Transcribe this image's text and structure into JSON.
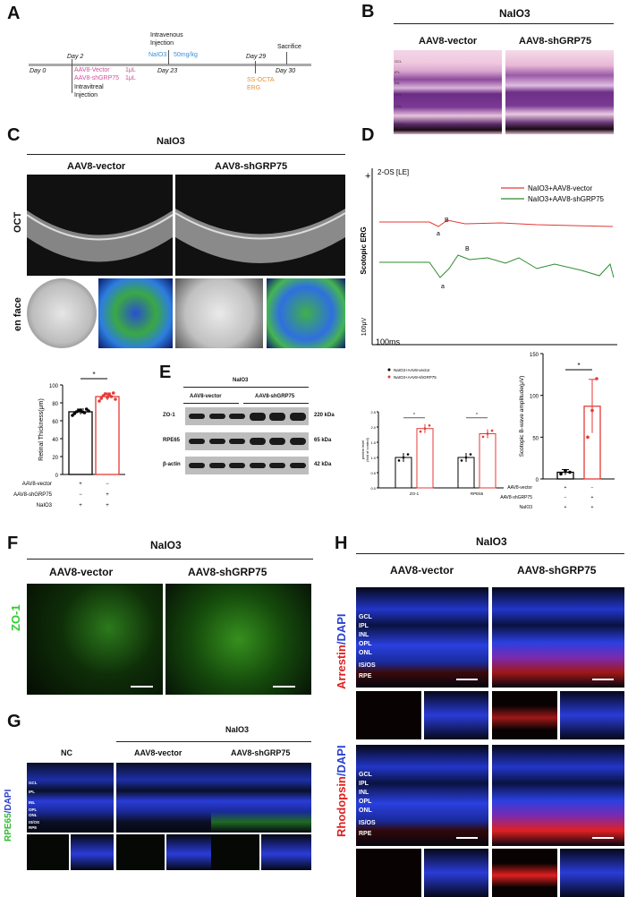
{
  "panels": {
    "A": "A",
    "B": "B",
    "C": "C",
    "D": "D",
    "E": "E",
    "F": "F",
    "G": "G",
    "H": "H"
  },
  "treatment": "NaIO3",
  "timeline": {
    "day0": "Day 0",
    "day2": "Day 2",
    "day2_vector": "AAV8-Vector",
    "day2_vector_vol": "1μL",
    "day2_sh": "AAV8-shGRP75",
    "day2_sh_vol": "1μL",
    "intravitreal": "Intravitreal",
    "injection": "Injection",
    "intravenous": "Intravenous",
    "iv_injection": "Injection",
    "naio3_drug": "NaIO3",
    "naio3_dose": "50mg/kg",
    "day23": "Day 23",
    "day29": "Day 29",
    "ssocta": "SS-OCTA",
    "erg": "ERG",
    "sacrifice": "Sacrifice",
    "day30": "Day 30"
  },
  "groups": {
    "vector": "AAV8-vector",
    "sh": "AAV8-shGRP75",
    "nc": "NC"
  },
  "panel_c": {
    "oct": "OCT",
    "enface": "en face"
  },
  "retina_layers": [
    "GCL",
    "IPL",
    "INL",
    "OPL",
    "ONL",
    "IS/OS",
    "RPE"
  ],
  "panel_b_layers": [
    "GCL",
    "IPL",
    "INL",
    "OPL",
    "ONL",
    "IS/OS"
  ],
  "bar_c": {
    "ylabel": "Retinal Thickness(μm)",
    "ticks": [
      "0",
      "20",
      "40",
      "60",
      "80",
      "100"
    ],
    "sig": "*",
    "rows": [
      {
        "label": "AAV8-vector",
        "v": [
          "+",
          "−"
        ]
      },
      {
        "label": "AAV8-shGRP75",
        "v": [
          "−",
          "+"
        ]
      },
      {
        "label": "NaIO3",
        "v": [
          "+",
          "+"
        ]
      }
    ]
  },
  "panel_d": {
    "header": "2-OS [LE]",
    "ylabel": "Scotopic ERG",
    "scale_y": "100μV",
    "scale_x": "100ms",
    "legend": [
      "NaIO3+AAV8-vector",
      "NaIO3+AAV8-shGRP75"
    ],
    "wave_a": "a",
    "wave_b": "B"
  },
  "panel_e": {
    "header": "NaIO3",
    "group1": "AAV8-vector",
    "group2": "AAV8-shGRP75",
    "rows": [
      {
        "name": "ZO-1",
        "kda": "220 kDa"
      },
      {
        "name": "RPE65",
        "kda": "65 kDa"
      },
      {
        "name": "β-actin",
        "kda": "42 kDa"
      }
    ],
    "legend": [
      "NaIO3+AAV8-vector",
      "NaIO3+AAV8-shGRP75"
    ],
    "ylabel": "protein level\n(fold of control)",
    "ticks": [
      "0.0",
      "0.5",
      "1.0",
      "1.5",
      "2.0",
      "2.5"
    ],
    "cats": [
      "ZO-1",
      "RPE65"
    ],
    "sig": "*"
  },
  "bar_d": {
    "ylabel": "Scotopic B-wave amplitude(μV)",
    "ticks": [
      "0",
      "50",
      "100",
      "150"
    ],
    "sig": "*",
    "rows": [
      {
        "label": "AAV8-vector",
        "v": [
          "+",
          "−"
        ]
      },
      {
        "label": "AAV8-shGRP75",
        "v": [
          "−",
          "+"
        ]
      },
      {
        "label": "NaIO3",
        "v": [
          "+",
          "+"
        ]
      }
    ]
  },
  "panel_f": {
    "stain": "ZO-1"
  },
  "panel_g": {
    "stain1": "RPE65",
    "stain2": "/DAPI"
  },
  "panel_h": {
    "stain_a1": "Arrestin",
    "stain_a2": "/DAPI",
    "stain_r1": "Rhodopsin",
    "stain_r2": "/DAPI"
  },
  "chart_data": [
    {
      "type": "bar",
      "title": "",
      "ylabel": "Retinal Thickness(μm)",
      "ylim": [
        0,
        100
      ],
      "categories": [
        "AAV8-vector",
        "AAV8-shGRP75"
      ],
      "values": [
        70,
        87
      ]
    },
    {
      "type": "bar",
      "title": "",
      "ylabel": "protein level (fold of control)",
      "ylim": [
        0,
        2.5
      ],
      "categories": [
        "ZO-1",
        "RPE65"
      ],
      "series": [
        {
          "name": "NaIO3+AAV8-vector",
          "values": [
            1.0,
            1.0
          ]
        },
        {
          "name": "NaIO3+AAV8-shGRP75",
          "values": [
            1.95,
            1.78
          ]
        }
      ]
    },
    {
      "type": "bar",
      "title": "",
      "ylabel": "Scotopic B-wave amplitude(μV)",
      "ylim": [
        0,
        150
      ],
      "categories": [
        "AAV8-vector",
        "AAV8-shGRP75"
      ],
      "values": [
        8,
        87
      ]
    },
    {
      "type": "line",
      "title": "",
      "ylabel": "Scotopic ERG",
      "series": [
        {
          "name": "NaIO3+AAV8-vector",
          "color": "#e53935"
        },
        {
          "name": "NaIO3+AAV8-shGRP75",
          "color": "#2e8b2e"
        }
      ]
    }
  ]
}
